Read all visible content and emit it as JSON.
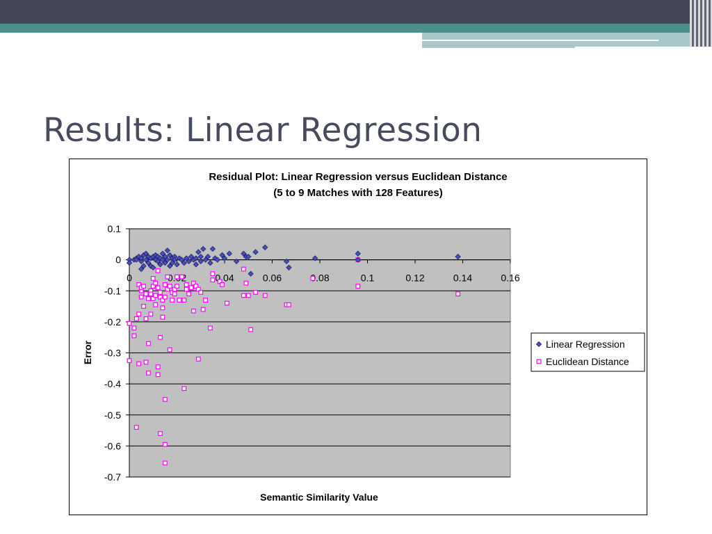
{
  "slide": {
    "title": "Results: Linear Regression",
    "colors": {
      "title": "#484a5d",
      "header_dark": "#434454",
      "header_teal": "#4a8f8c",
      "header_light": "#a9c6c9"
    }
  },
  "chart_data": {
    "type": "scatter",
    "title": "Residual Plot: Linear Regression versus Euclidean Distance",
    "subtitle": "(5 to 9 Matches with 128 Features)",
    "xlabel": "Semantic Similarity Value",
    "ylabel": "Error",
    "xlim": [
      0,
      0.16
    ],
    "ylim": [
      -0.7,
      0.1
    ],
    "x_ticks": [
      "0",
      "0.02",
      "0.04",
      "0.06",
      "0.08",
      "0.1",
      "0.12",
      "0.14",
      "0.16"
    ],
    "y_ticks": [
      "0.1",
      "0",
      "-0.1",
      "-0.2",
      "-0.3",
      "-0.4",
      "-0.5",
      "-0.6",
      "-0.7"
    ],
    "grid": true,
    "plot_background": "#c0c0c0",
    "legend_position": "right",
    "series": [
      {
        "name": "Linear Regression",
        "marker": "diamond",
        "color": "#4b4fbd",
        "points": [
          [
            0.0,
            0.0
          ],
          [
            0.0,
            -0.01
          ],
          [
            0.002,
            0.0
          ],
          [
            0.003,
            0.005
          ],
          [
            0.003,
            0.0
          ],
          [
            0.004,
            0.01
          ],
          [
            0.005,
            -0.005
          ],
          [
            0.005,
            0.005
          ],
          [
            0.005,
            -0.03
          ],
          [
            0.006,
            0.015
          ],
          [
            0.006,
            -0.02
          ],
          [
            0.007,
            0.02
          ],
          [
            0.007,
            0.0
          ],
          [
            0.008,
            0.01
          ],
          [
            0.008,
            -0.01
          ],
          [
            0.009,
            0.005
          ],
          [
            0.009,
            -0.02
          ],
          [
            0.01,
            0.01
          ],
          [
            0.01,
            -0.025
          ],
          [
            0.011,
            0.0
          ],
          [
            0.011,
            0.015
          ],
          [
            0.012,
            -0.005
          ],
          [
            0.012,
            0.01
          ],
          [
            0.013,
            0.005
          ],
          [
            0.013,
            -0.015
          ],
          [
            0.014,
            0.02
          ],
          [
            0.014,
            0.0
          ],
          [
            0.015,
            -0.01
          ],
          [
            0.015,
            0.01
          ],
          [
            0.016,
            0.03
          ],
          [
            0.016,
            0.0
          ],
          [
            0.017,
            -0.02
          ],
          [
            0.017,
            0.015
          ],
          [
            0.018,
            0.005
          ],
          [
            0.018,
            -0.01
          ],
          [
            0.019,
            0.01
          ],
          [
            0.019,
            0.0
          ],
          [
            0.02,
            -0.015
          ],
          [
            0.021,
            0.005
          ],
          [
            0.022,
            0.0
          ],
          [
            0.023,
            -0.01
          ],
          [
            0.024,
            0.005
          ],
          [
            0.025,
            -0.005
          ],
          [
            0.026,
            0.01
          ],
          [
            0.027,
            0.0
          ],
          [
            0.028,
            0.005
          ],
          [
            0.028,
            -0.015
          ],
          [
            0.029,
            0.025
          ],
          [
            0.03,
            0.01
          ],
          [
            0.03,
            -0.005
          ],
          [
            0.031,
            0.035
          ],
          [
            0.032,
            0.0
          ],
          [
            0.033,
            0.01
          ],
          [
            0.034,
            -0.01
          ],
          [
            0.035,
            0.035
          ],
          [
            0.036,
            0.005
          ],
          [
            0.037,
            0.0
          ],
          [
            0.039,
            0.015
          ],
          [
            0.04,
            0.005
          ],
          [
            0.042,
            0.02
          ],
          [
            0.045,
            -0.005
          ],
          [
            0.048,
            0.02
          ],
          [
            0.049,
            0.01
          ],
          [
            0.05,
            0.01
          ],
          [
            0.051,
            -0.045
          ],
          [
            0.053,
            0.025
          ],
          [
            0.057,
            0.04
          ],
          [
            0.066,
            -0.005
          ],
          [
            0.067,
            -0.025
          ],
          [
            0.078,
            0.005
          ],
          [
            0.096,
            0.0
          ],
          [
            0.096,
            0.02
          ],
          [
            0.138,
            0.01
          ]
        ]
      },
      {
        "name": "Euclidean Distance",
        "marker": "square",
        "color": "#ff00ff",
        "points": [
          [
            0.0,
            -0.205
          ],
          [
            0.0,
            -0.325
          ],
          [
            0.002,
            -0.22
          ],
          [
            0.002,
            -0.245
          ],
          [
            0.003,
            -0.54
          ],
          [
            0.003,
            -0.19
          ],
          [
            0.004,
            -0.08
          ],
          [
            0.004,
            -0.175
          ],
          [
            0.004,
            -0.335
          ],
          [
            0.005,
            -0.1
          ],
          [
            0.005,
            -0.12
          ],
          [
            0.005,
            -0.09
          ],
          [
            0.006,
            -0.15
          ],
          [
            0.006,
            -0.085
          ],
          [
            0.007,
            -0.11
          ],
          [
            0.007,
            -0.19
          ],
          [
            0.007,
            -0.33
          ],
          [
            0.008,
            -0.125
          ],
          [
            0.008,
            -0.27
          ],
          [
            0.008,
            -0.365
          ],
          [
            0.009,
            -0.1
          ],
          [
            0.009,
            -0.175
          ],
          [
            0.009,
            -0.11
          ],
          [
            0.01,
            -0.06
          ],
          [
            0.01,
            -0.085
          ],
          [
            0.01,
            -0.125
          ],
          [
            0.011,
            -0.075
          ],
          [
            0.011,
            -0.115
          ],
          [
            0.011,
            -0.145
          ],
          [
            0.012,
            -0.09
          ],
          [
            0.012,
            -0.035
          ],
          [
            0.012,
            -0.345
          ],
          [
            0.012,
            -0.37
          ],
          [
            0.013,
            -0.105
          ],
          [
            0.013,
            -0.12
          ],
          [
            0.013,
            -0.25
          ],
          [
            0.013,
            -0.56
          ],
          [
            0.014,
            -0.13
          ],
          [
            0.014,
            -0.155
          ],
          [
            0.014,
            -0.185
          ],
          [
            0.015,
            -0.08
          ],
          [
            0.015,
            -0.12
          ],
          [
            0.015,
            -0.45
          ],
          [
            0.015,
            -0.595
          ],
          [
            0.015,
            -0.655
          ],
          [
            0.016,
            -0.055
          ],
          [
            0.016,
            -0.095
          ],
          [
            0.017,
            -0.085
          ],
          [
            0.017,
            -0.29
          ],
          [
            0.018,
            -0.105
          ],
          [
            0.018,
            -0.13
          ],
          [
            0.019,
            -0.095
          ],
          [
            0.019,
            -0.11
          ],
          [
            0.02,
            -0.085
          ],
          [
            0.02,
            -0.055
          ],
          [
            0.021,
            -0.13
          ],
          [
            0.022,
            -0.055
          ],
          [
            0.023,
            -0.13
          ],
          [
            0.023,
            -0.415
          ],
          [
            0.024,
            -0.08
          ],
          [
            0.024,
            -0.095
          ],
          [
            0.025,
            -0.11
          ],
          [
            0.026,
            -0.09
          ],
          [
            0.027,
            -0.075
          ],
          [
            0.027,
            -0.165
          ],
          [
            0.028,
            -0.085
          ],
          [
            0.029,
            -0.095
          ],
          [
            0.029,
            -0.32
          ],
          [
            0.03,
            -0.105
          ],
          [
            0.031,
            -0.16
          ],
          [
            0.032,
            -0.13
          ],
          [
            0.034,
            -0.22
          ],
          [
            0.035,
            -0.065
          ],
          [
            0.035,
            -0.045
          ],
          [
            0.038,
            -0.07
          ],
          [
            0.039,
            -0.08
          ],
          [
            0.041,
            -0.14
          ],
          [
            0.048,
            -0.03
          ],
          [
            0.048,
            -0.115
          ],
          [
            0.049,
            -0.075
          ],
          [
            0.05,
            -0.115
          ],
          [
            0.051,
            -0.225
          ],
          [
            0.053,
            -0.105
          ],
          [
            0.057,
            -0.115
          ],
          [
            0.066,
            -0.145
          ],
          [
            0.067,
            -0.145
          ],
          [
            0.077,
            -0.06
          ],
          [
            0.096,
            -0.085
          ],
          [
            0.096,
            0.0
          ],
          [
            0.138,
            -0.11
          ]
        ]
      }
    ]
  }
}
